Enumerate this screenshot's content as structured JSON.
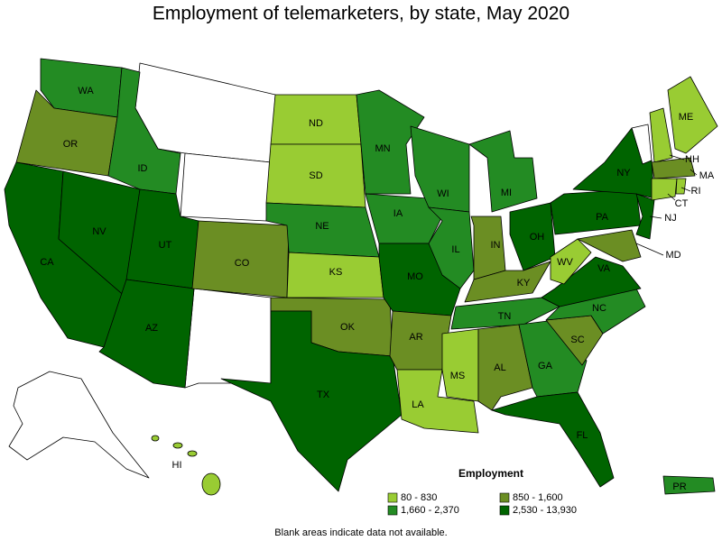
{
  "title": "Employment of telemarketers, by state, May 2020",
  "legend": {
    "title": "Employment",
    "items": [
      {
        "label": "80 - 830",
        "color": "#99cc33"
      },
      {
        "label": "850 - 1,600",
        "color": "#6b8e23"
      },
      {
        "label": "1,660 - 2,370",
        "color": "#238b23"
      },
      {
        "label": "2,530 - 13,930",
        "color": "#006400"
      }
    ]
  },
  "states": [
    {
      "label": "WA",
      "range": 2
    },
    {
      "label": "OR",
      "range": 1
    },
    {
      "label": "CA",
      "range": 3
    },
    {
      "label": "NV",
      "range": 3
    },
    {
      "label": "ID",
      "range": 2
    },
    {
      "label": "UT",
      "range": 3
    },
    {
      "label": "AZ",
      "range": 3
    },
    {
      "label": "CO",
      "range": 1
    },
    {
      "label": "ND",
      "range": 0
    },
    {
      "label": "SD",
      "range": 0
    },
    {
      "label": "NE",
      "range": 2
    },
    {
      "label": "KS",
      "range": 0
    },
    {
      "label": "OK",
      "range": 1
    },
    {
      "label": "TX",
      "range": 3
    },
    {
      "label": "MN",
      "range": 2
    },
    {
      "label": "IA",
      "range": 2
    },
    {
      "label": "MO",
      "range": 3
    },
    {
      "label": "AR",
      "range": 1
    },
    {
      "label": "LA",
      "range": 0
    },
    {
      "label": "WI",
      "range": 2
    },
    {
      "label": "IL",
      "range": 2
    },
    {
      "label": "MI",
      "range": 2
    },
    {
      "label": "IN",
      "range": 1
    },
    {
      "label": "OH",
      "range": 3
    },
    {
      "label": "KY",
      "range": 1
    },
    {
      "label": "TN",
      "range": 2
    },
    {
      "label": "MS",
      "range": 0
    },
    {
      "label": "AL",
      "range": 1
    },
    {
      "label": "GA",
      "range": 2
    },
    {
      "label": "FL",
      "range": 3
    },
    {
      "label": "SC",
      "range": 1
    },
    {
      "label": "NC",
      "range": 2
    },
    {
      "label": "VA",
      "range": 3
    },
    {
      "label": "WV",
      "range": 0
    },
    {
      "label": "PA",
      "range": 3
    },
    {
      "label": "NY",
      "range": 3
    },
    {
      "label": "NJ",
      "range": 3
    },
    {
      "label": "MD",
      "range": 1
    },
    {
      "label": "ME",
      "range": 0
    },
    {
      "label": "NH",
      "range": 0
    },
    {
      "label": "MA",
      "range": 1
    },
    {
      "label": "CT",
      "range": 0
    },
    {
      "label": "RI",
      "range": 0
    },
    {
      "label": "HI",
      "range": 0
    },
    {
      "label": "PR",
      "range": 2
    }
  ],
  "footnote": "Blank areas indicate data not available."
}
